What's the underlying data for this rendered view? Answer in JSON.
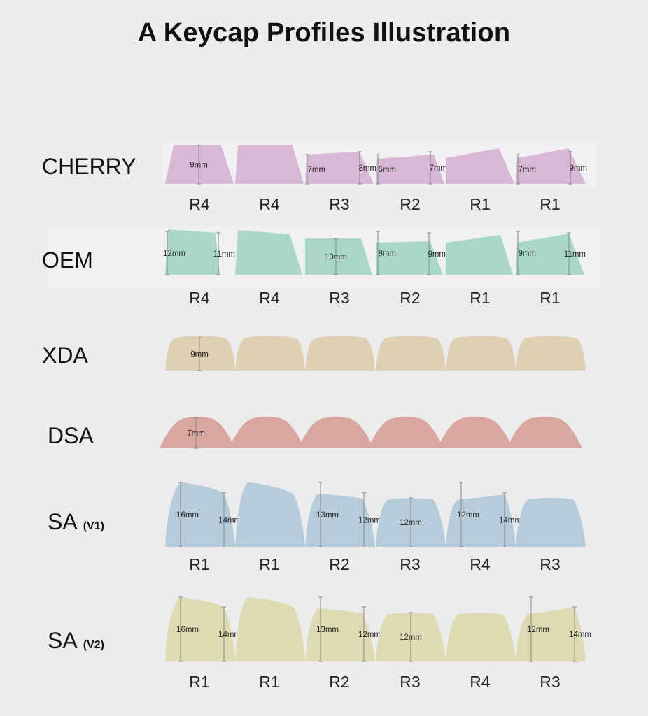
{
  "title": "A Keycap Profiles Illustration",
  "profiles": [
    {
      "name": "CHERRY",
      "version": "",
      "color": "#d8b8d6",
      "keys": [
        {
          "row": "R4",
          "left": "",
          "right": "",
          "center": "9mm"
        },
        {
          "row": "R4",
          "left": "",
          "right": "",
          "center": ""
        },
        {
          "row": "R3",
          "left": "7mm",
          "right": "8mm",
          "center": ""
        },
        {
          "row": "R2",
          "left": "6mm",
          "right": "7mm",
          "center": ""
        },
        {
          "row": "R1",
          "left": "",
          "right": "",
          "center": ""
        },
        {
          "row": "R1",
          "left": "7mm",
          "right": "9mm",
          "center": ""
        }
      ]
    },
    {
      "name": "OEM",
      "version": "",
      "color": "#a9d8c6",
      "keys": [
        {
          "row": "R4",
          "left": "12mm",
          "right": "11mm",
          "center": ""
        },
        {
          "row": "R4",
          "left": "",
          "right": "",
          "center": ""
        },
        {
          "row": "R3",
          "left": "",
          "right": "",
          "center": "10mm"
        },
        {
          "row": "R2",
          "left": "8mm",
          "right": "9mm",
          "center": ""
        },
        {
          "row": "R1",
          "left": "",
          "right": "",
          "center": ""
        },
        {
          "row": "R1",
          "left": "9mm",
          "right": "11mm",
          "center": ""
        }
      ]
    },
    {
      "name": "XDA",
      "version": "",
      "color": "#dfcfb3",
      "keys": [
        {
          "row": "",
          "left": "",
          "right": "",
          "center": "9mm"
        },
        {
          "row": "",
          "left": "",
          "right": "",
          "center": ""
        },
        {
          "row": "",
          "left": "",
          "right": "",
          "center": ""
        },
        {
          "row": "",
          "left": "",
          "right": "",
          "center": ""
        },
        {
          "row": "",
          "left": "",
          "right": "",
          "center": ""
        },
        {
          "row": "",
          "left": "",
          "right": "",
          "center": ""
        }
      ]
    },
    {
      "name": "DSA",
      "version": "",
      "color": "#d9a6a0",
      "keys": [
        {
          "row": "",
          "left": "",
          "right": "",
          "center": "7mm"
        },
        {
          "row": "",
          "left": "",
          "right": "",
          "center": ""
        },
        {
          "row": "",
          "left": "",
          "right": "",
          "center": ""
        },
        {
          "row": "",
          "left": "",
          "right": "",
          "center": ""
        },
        {
          "row": "",
          "left": "",
          "right": "",
          "center": ""
        },
        {
          "row": "",
          "left": "",
          "right": "",
          "center": ""
        }
      ]
    },
    {
      "name": "SA",
      "version": "(V1)",
      "color": "#b6ccdb",
      "keys": [
        {
          "row": "R1",
          "left": "16mm",
          "right": "14mm",
          "center": ""
        },
        {
          "row": "R1",
          "left": "",
          "right": "",
          "center": ""
        },
        {
          "row": "R2",
          "left": "13mm",
          "right": "12mm",
          "center": ""
        },
        {
          "row": "R3",
          "left": "",
          "right": "",
          "center": "12mm"
        },
        {
          "row": "R4",
          "left": "12mm",
          "right": "14mm",
          "center": ""
        },
        {
          "row": "R3",
          "left": "",
          "right": "",
          "center": ""
        }
      ]
    },
    {
      "name": "SA",
      "version": "(V2)",
      "color": "#dedab2",
      "keys": [
        {
          "row": "R1",
          "left": "16mm",
          "right": "14mm",
          "center": ""
        },
        {
          "row": "R1",
          "left": "",
          "right": "",
          "center": ""
        },
        {
          "row": "R2",
          "left": "13mm",
          "right": "12mm",
          "center": ""
        },
        {
          "row": "R3",
          "left": "",
          "right": "",
          "center": "12mm"
        },
        {
          "row": "R4",
          "left": "",
          "right": "",
          "center": ""
        },
        {
          "row": "R3",
          "left": "12mm",
          "right": "14mm",
          "center": ""
        }
      ]
    }
  ]
}
